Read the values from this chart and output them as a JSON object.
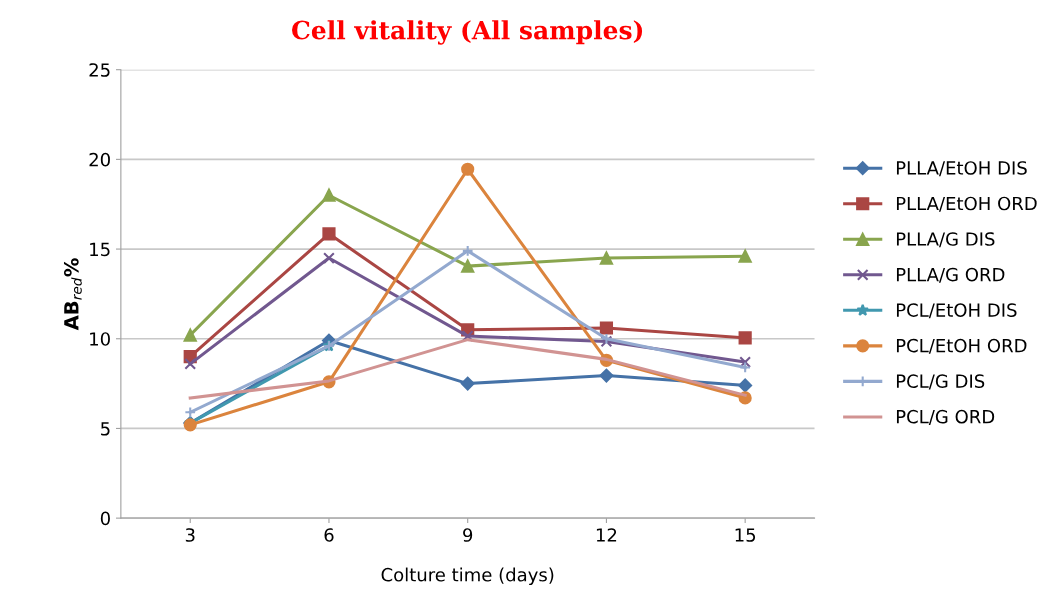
{
  "chart_data": {
    "type": "line",
    "title": "Cell vitality (All samples)",
    "xlabel": "Colture time (days)",
    "ylabel": "AB$_{red}$%",
    "categories": [
      "3",
      "6",
      "9",
      "12",
      "15"
    ],
    "ylim": [
      0,
      25
    ],
    "yticks": [
      0,
      5,
      10,
      15,
      20,
      25
    ],
    "grid": "y",
    "legend": "right",
    "series": [
      {
        "name": "PLLA/EtOH DIS",
        "color": "#4572a7",
        "marker": "diamond",
        "values": [
          5.3,
          9.9,
          7.5,
          7.95,
          7.4
        ]
      },
      {
        "name": "PLLA/EtOH ORD",
        "color": "#aa4643",
        "marker": "square",
        "values": [
          9.0,
          15.85,
          10.5,
          10.6,
          10.05
        ]
      },
      {
        "name": "PLLA/G DIS",
        "color": "#89a54e",
        "marker": "triangle",
        "values": [
          10.2,
          18.0,
          14.05,
          14.5,
          14.6
        ]
      },
      {
        "name": "PLLA/G ORD",
        "color": "#71588f",
        "marker": "cross",
        "values": [
          8.6,
          14.5,
          10.15,
          9.85,
          8.7
        ]
      },
      {
        "name": "PCL/EtOH DIS",
        "color": "#4198af",
        "marker": "star",
        "values": [
          5.3,
          9.6,
          null,
          null,
          null
        ]
      },
      {
        "name": "PCL/EtOH ORD",
        "color": "#db843d",
        "marker": "circle",
        "values": [
          5.2,
          7.6,
          19.45,
          8.8,
          6.7
        ]
      },
      {
        "name": "PCL/G DIS",
        "color": "#93a9cf",
        "marker": "plus",
        "values": [
          5.9,
          9.6,
          14.9,
          10.0,
          8.4
        ]
      },
      {
        "name": "PCL/G ORD",
        "color": "#d19392",
        "marker": "none",
        "values": [
          6.7,
          7.65,
          9.95,
          8.85,
          6.85
        ]
      }
    ]
  }
}
